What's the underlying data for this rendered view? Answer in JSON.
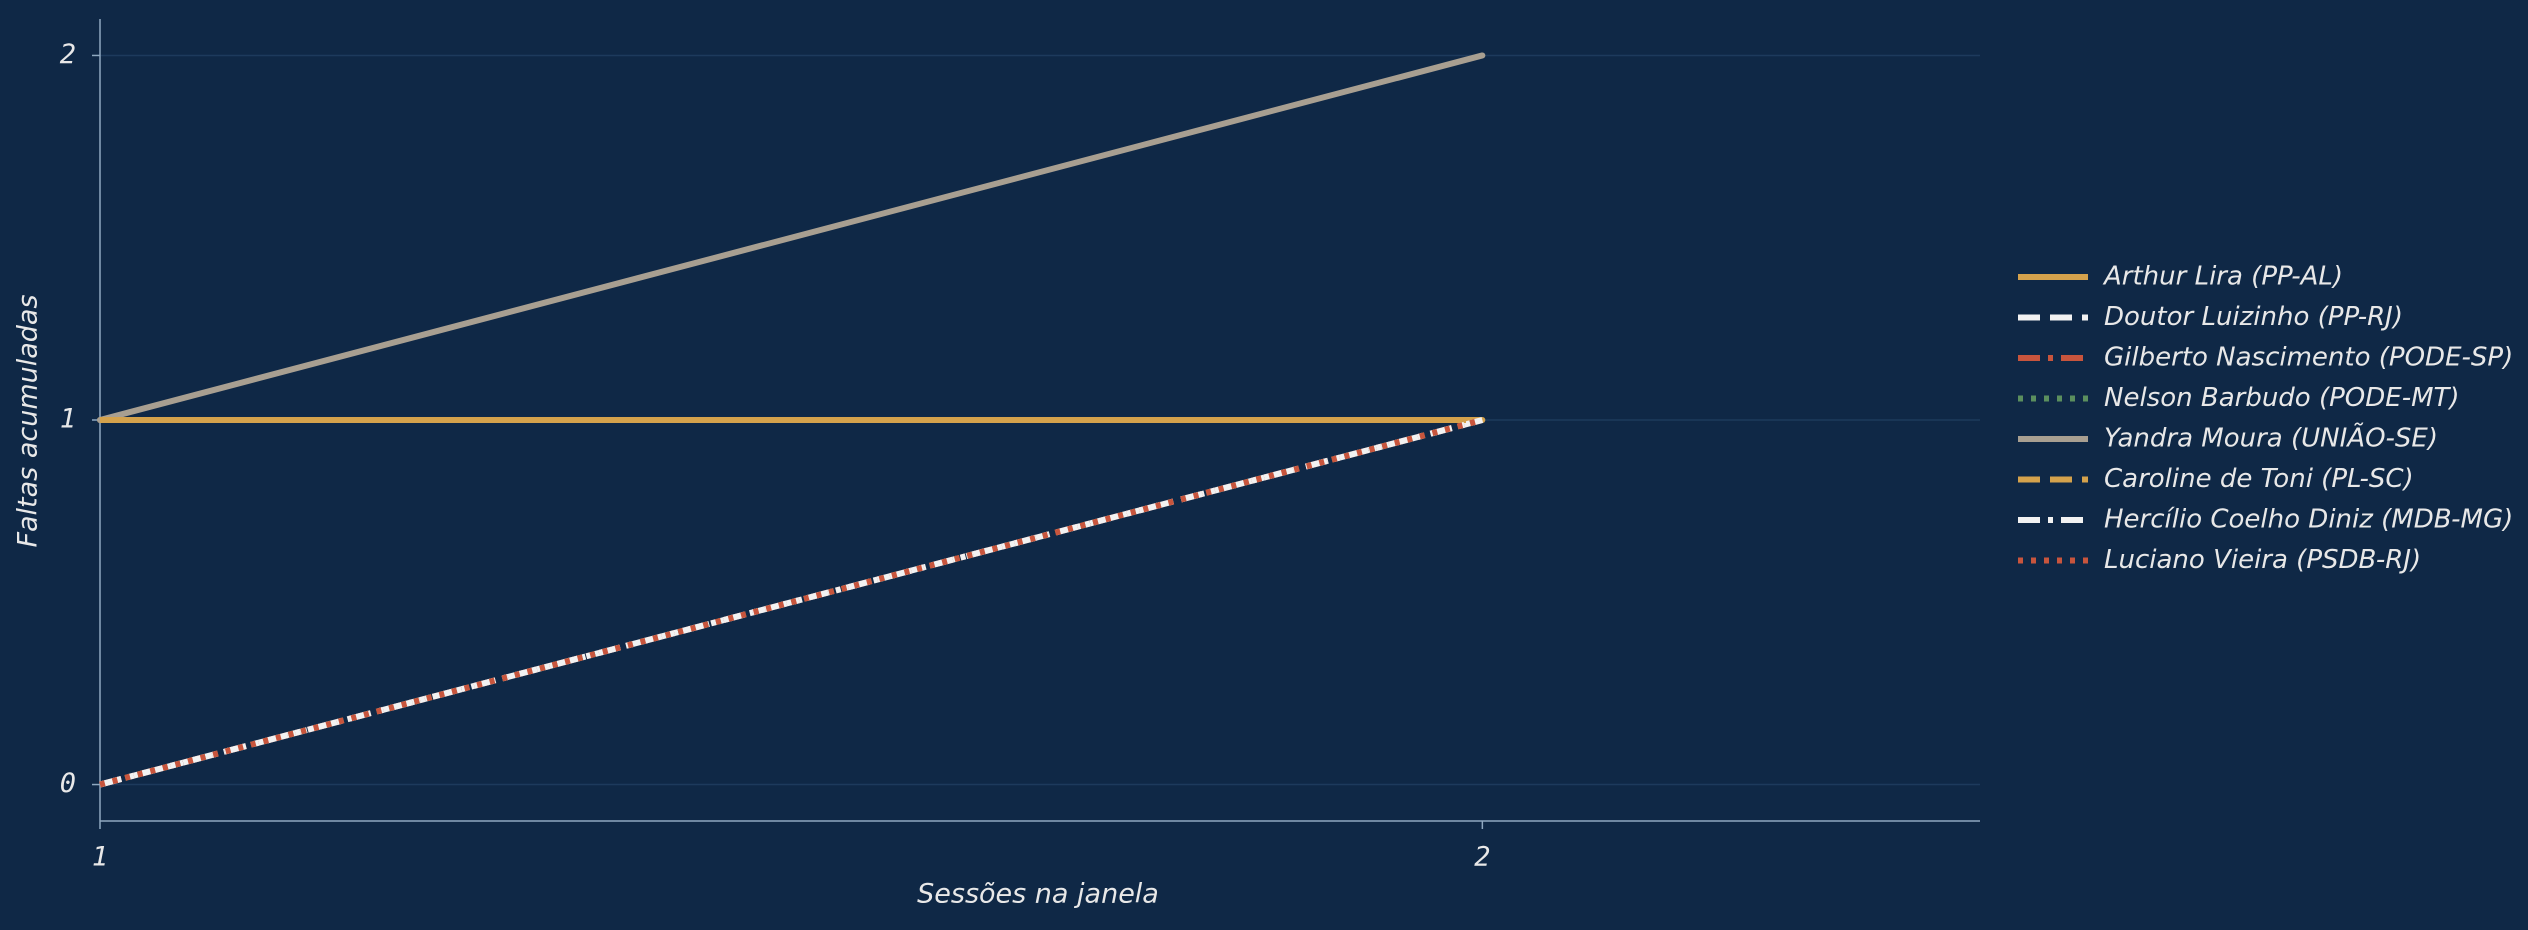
{
  "chart_data": {
    "type": "line",
    "xlabel": "Sessões na janela",
    "ylabel": "Faltas acumuladas",
    "x": [
      1,
      2
    ],
    "xlim": [
      1,
      2.36
    ],
    "xticks": [
      1,
      2
    ],
    "ylim": [
      -0.1,
      2.1
    ],
    "yticks": [
      0,
      1,
      2
    ],
    "grid": true,
    "legend": "right",
    "series": [
      {
        "name": "Arthur Lira (PP-AL)",
        "color": "#d4a24c",
        "dash": "solid",
        "values": [
          1,
          1
        ]
      },
      {
        "name": "Doutor Luizinho (PP-RJ)",
        "color": "#f2f2f2",
        "dash": "dashed",
        "values": [
          0,
          1
        ]
      },
      {
        "name": "Gilberto Nascimento (PODE-SP)",
        "color": "#c8553d",
        "dash": "dashdot",
        "values": [
          0,
          1
        ]
      },
      {
        "name": "Nelson Barbudo (PODE-MT)",
        "color": "#5b8f5e",
        "dash": "dotted",
        "values": [
          0,
          1
        ]
      },
      {
        "name": "Yandra Moura (UNIÃO-SE)",
        "color": "#a89f91",
        "dash": "solid",
        "values": [
          1,
          2
        ]
      },
      {
        "name": "Caroline de Toni (PL-SC)",
        "color": "#d4a24c",
        "dash": "dashed",
        "values": [
          1,
          1
        ]
      },
      {
        "name": "Hercílio Coelho Diniz (MDB-MG)",
        "color": "#f2f2f2",
        "dash": "dashdot",
        "values": [
          0,
          1
        ]
      },
      {
        "name": "Luciano Vieira (PSDB-RJ)",
        "color": "#c8553d",
        "dash": "dotted",
        "values": [
          0,
          1
        ]
      }
    ]
  }
}
